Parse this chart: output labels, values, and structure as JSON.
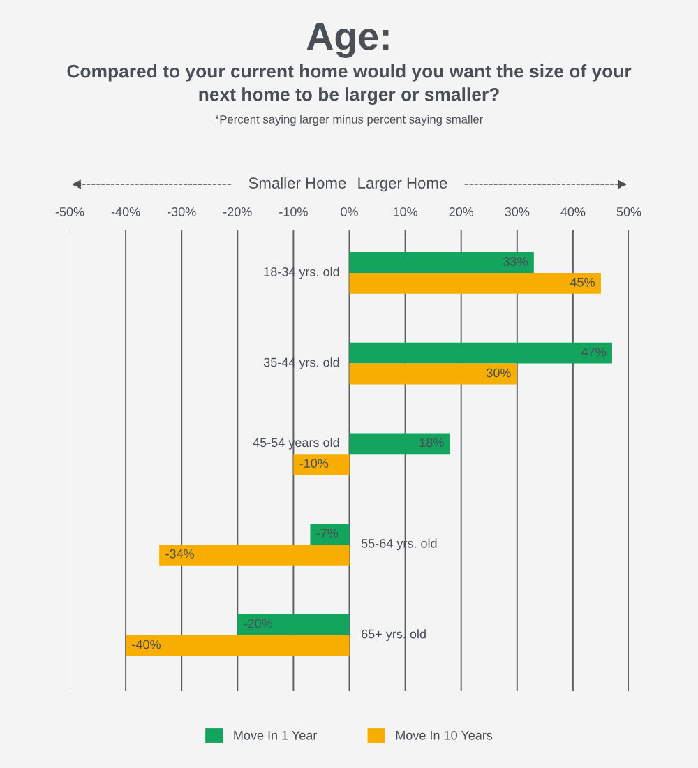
{
  "chart_data": {
    "type": "bar",
    "orientation": "horizontal",
    "title": "Age:",
    "subtitle": "Compared to your current home would you want the size of your next home to be larger or smaller?",
    "annotations": [
      "*Percent saying larger minus percent saying smaller",
      "Smaller Home",
      "Larger Home"
    ],
    "categories": [
      "18-34 yrs. old",
      "35-44 yrs. old",
      "45-54 years old",
      "55-64 yrs. old",
      "65+ yrs. old"
    ],
    "series": [
      {
        "name": "Move In 1 Year",
        "color": "#13a45e",
        "values": [
          33,
          47,
          18,
          -7,
          -20
        ],
        "value_labels": [
          "33%",
          "47%",
          "18%",
          "-7%",
          "-20%"
        ]
      },
      {
        "name": "Move In 10 Years",
        "color": "#f8ae00",
        "values": [
          45,
          30,
          -10,
          -34,
          -40
        ],
        "value_labels": [
          "45%",
          "30%",
          "-10%",
          "-34%",
          "-40%"
        ]
      }
    ],
    "xlim": [
      -50,
      50
    ],
    "xticks": [
      {
        "value": -50,
        "label": "-50%"
      },
      {
        "value": -40,
        "label": "-40%"
      },
      {
        "value": -30,
        "label": "-30%"
      },
      {
        "value": -20,
        "label": "-20%"
      },
      {
        "value": -10,
        "label": "-10%"
      },
      {
        "value": 0,
        "label": "0%"
      },
      {
        "value": 10,
        "label": "10%"
      },
      {
        "value": 20,
        "label": "20%"
      },
      {
        "value": 30,
        "label": "30%"
      },
      {
        "value": 40,
        "label": "40%"
      },
      {
        "value": 50,
        "label": "50%"
      }
    ],
    "grid": "x",
    "legend": "bottom"
  }
}
